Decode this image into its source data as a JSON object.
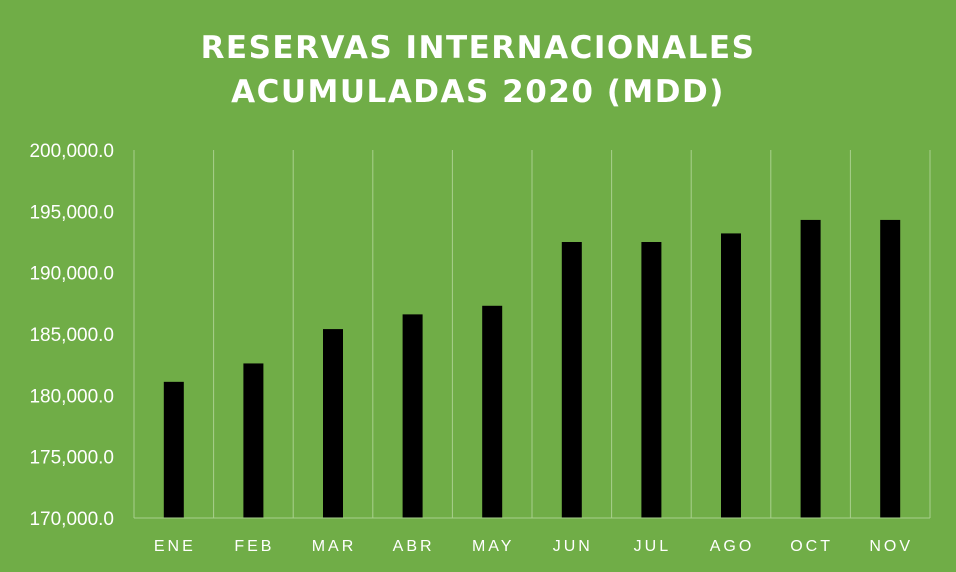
{
  "chart_data": {
    "type": "bar",
    "title_lines": [
      "RESERVAS INTERNACIONALES",
      "ACUMULADAS 2020 (MDD)"
    ],
    "categories": [
      "ENE",
      "FEB",
      "MAR",
      "ABR",
      "MAY",
      "JUN",
      "JUL",
      "AGO",
      "OCT",
      "NOV"
    ],
    "series": [
      {
        "values": [
          181100,
          182600,
          185400,
          186600,
          187300,
          192500,
          192500,
          193200,
          194300,
          194300
        ]
      }
    ],
    "ylim": [
      170000,
      200000
    ],
    "yticks": [
      170000,
      175000,
      180000,
      185000,
      190000,
      195000,
      200000
    ],
    "ytick_labels": [
      "170,000.0",
      "175,000.0",
      "180,000.0",
      "185,000.0",
      "190,000.0",
      "195,000.0",
      "200,000.0"
    ],
    "grid": "vertical",
    "legend": "none",
    "colors": {
      "background": "#70AD47",
      "bar": "#000000",
      "text": "#FFFFFF",
      "gridline": "#A9D08E"
    }
  }
}
